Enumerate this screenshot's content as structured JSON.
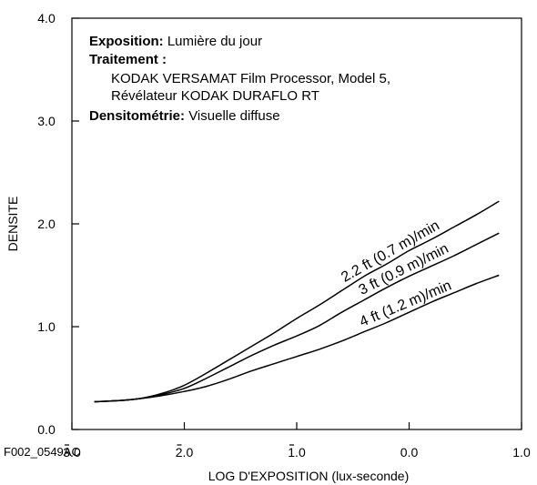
{
  "chart_data": {
    "type": "line",
    "title": "",
    "xlabel": "LOG D'EXPOSITION (lux-seconde)",
    "ylabel": "DENSITE",
    "xlim": [
      -3.0,
      1.0
    ],
    "ylim": [
      0.0,
      4.0
    ],
    "x_ticks": [
      -3.0,
      -2.0,
      -1.0,
      0.0,
      1.0
    ],
    "x_tick_labels": [
      "3.0",
      "2.0",
      "1.0",
      "0.0",
      "1.0"
    ],
    "x_tick_bars": [
      true,
      true,
      true,
      false,
      false
    ],
    "y_ticks": [
      0.0,
      1.0,
      2.0,
      3.0,
      4.0
    ],
    "y_tick_labels": [
      "0.0",
      "1.0",
      "2.0",
      "3.0",
      "4.0"
    ],
    "grid": false,
    "figure_code": "F002_0549AC",
    "annotation": [
      {
        "label": "Exposition:",
        "text": " Lumière du jour"
      },
      {
        "label": "Traitement :",
        "text": ""
      },
      {
        "label": "",
        "text": "KODAK VERSAMAT Film Processor, Model 5,"
      },
      {
        "label": "",
        "text": "Révélateur KODAK DURAFLO RT"
      },
      {
        "label": "Densitométrie:",
        "text": " Visuelle diffuse"
      }
    ],
    "series": [
      {
        "name": "2.2 ft (0.7 m)/min",
        "x": [
          -2.8,
          -2.6,
          -2.4,
          -2.2,
          -2.0,
          -1.8,
          -1.6,
          -1.4,
          -1.2,
          -1.0,
          -0.8,
          -0.6,
          -0.4,
          -0.2,
          0.0,
          0.2,
          0.4,
          0.6,
          0.8
        ],
        "y": [
          0.27,
          0.28,
          0.3,
          0.35,
          0.43,
          0.55,
          0.68,
          0.81,
          0.94,
          1.08,
          1.21,
          1.35,
          1.49,
          1.61,
          1.74,
          1.85,
          1.97,
          2.09,
          2.22
        ]
      },
      {
        "name": "3 ft (0.9 m)/min",
        "x": [
          -2.8,
          -2.6,
          -2.4,
          -2.2,
          -2.0,
          -1.8,
          -1.6,
          -1.4,
          -1.2,
          -1.0,
          -0.8,
          -0.6,
          -0.4,
          -0.2,
          0.0,
          0.2,
          0.4,
          0.6,
          0.8
        ],
        "y": [
          0.27,
          0.28,
          0.3,
          0.34,
          0.4,
          0.5,
          0.61,
          0.72,
          0.82,
          0.91,
          1.01,
          1.14,
          1.26,
          1.38,
          1.49,
          1.59,
          1.69,
          1.8,
          1.91
        ]
      },
      {
        "name": "4 ft (1.2 m)/min",
        "x": [
          -2.8,
          -2.6,
          -2.4,
          -2.2,
          -2.0,
          -1.8,
          -1.6,
          -1.4,
          -1.2,
          -1.0,
          -0.8,
          -0.6,
          -0.4,
          -0.2,
          0.0,
          0.2,
          0.4,
          0.6,
          0.8
        ],
        "y": [
          0.27,
          0.28,
          0.3,
          0.33,
          0.37,
          0.42,
          0.49,
          0.57,
          0.64,
          0.71,
          0.78,
          0.86,
          0.95,
          1.04,
          1.14,
          1.24,
          1.33,
          1.42,
          1.5
        ]
      }
    ]
  }
}
